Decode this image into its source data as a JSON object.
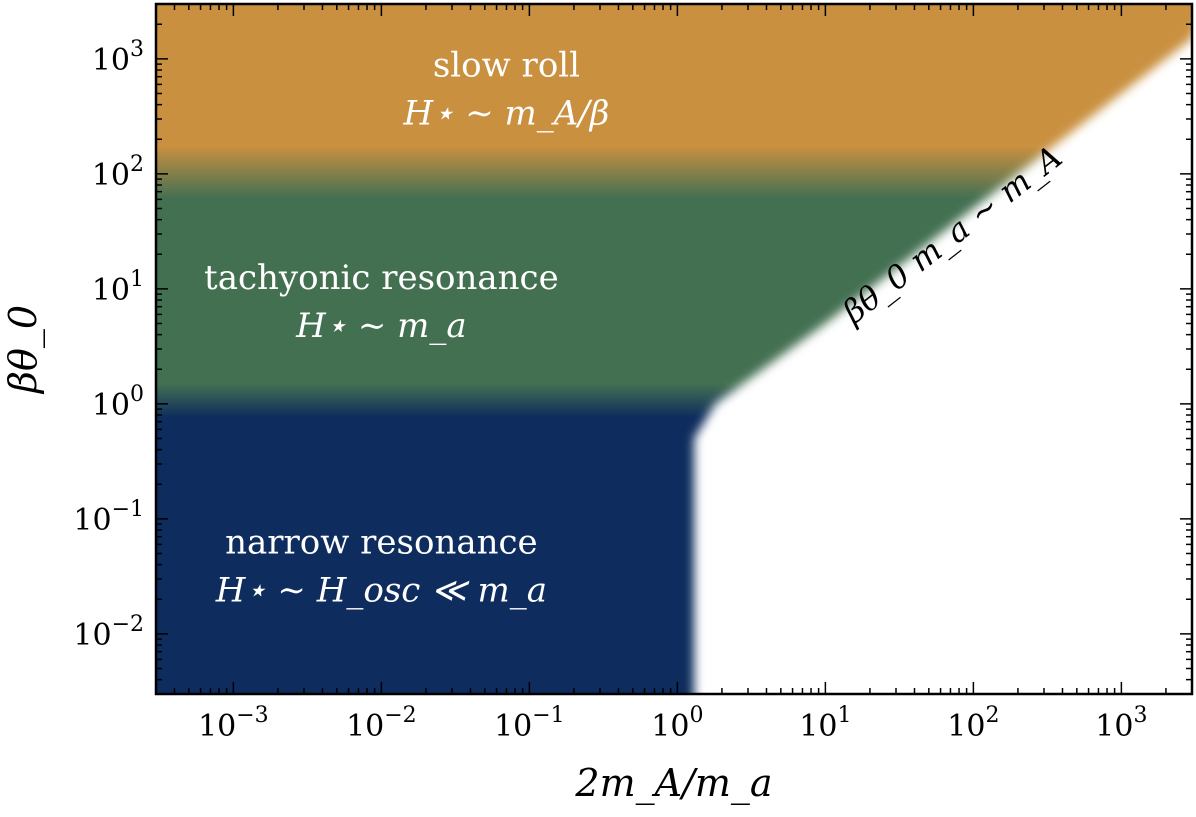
{
  "chart_data": {
    "type": "heatmap",
    "title": "",
    "xlabel": "2m_A/m_a",
    "ylabel": "βθ_0",
    "x_scale": "log",
    "y_scale": "log",
    "xlim": [
      0.0003,
      3000
    ],
    "ylim": [
      0.003,
      3000
    ],
    "x_ticks": [
      {
        "value": 0.001,
        "label": "10^-3"
      },
      {
        "value": 0.01,
        "label": "10^-2"
      },
      {
        "value": 0.1,
        "label": "10^-1"
      },
      {
        "value": 1,
        "label": "10^0"
      },
      {
        "value": 10,
        "label": "10^1"
      },
      {
        "value": 100,
        "label": "10^2"
      },
      {
        "value": 1000,
        "label": "10^3"
      }
    ],
    "y_ticks": [
      {
        "value": 0.01,
        "label": "10^-2"
      },
      {
        "value": 0.1,
        "label": "10^-1"
      },
      {
        "value": 1,
        "label": "10^0"
      },
      {
        "value": 10,
        "label": "10^1"
      },
      {
        "value": 100,
        "label": "10^2"
      },
      {
        "value": 1000,
        "label": "10^3"
      }
    ],
    "grid": false,
    "regions": [
      {
        "name": "slow roll",
        "formula": "H⋆ ∼ m_A/β",
        "color": "#c99040",
        "y_range": [
          100,
          3000
        ]
      },
      {
        "name": "tachyonic resonance",
        "formula": "H⋆ ∼ m_a",
        "color": "#447052",
        "y_range": [
          1,
          100
        ]
      },
      {
        "name": "narrow resonance",
        "formula": "H⋆ ∼ H_osc ≪ m_a",
        "color": "#0e2c5d",
        "y_range": [
          0.003,
          1
        ]
      }
    ],
    "boundary": {
      "label": "βθ_0 m_a ∼ m_A",
      "points": [
        [
          1.3,
          0.003
        ],
        [
          1.3,
          0.5
        ],
        [
          1.8,
          1.0
        ],
        [
          10,
          5
        ],
        [
          100,
          50
        ],
        [
          3000,
          1500
        ]
      ],
      "fill_color": "#ffffff"
    },
    "label_positions": {
      "slow roll": [
        0.07,
        700
      ],
      "tachyonic resonance": [
        0.01,
        10
      ],
      "narrow resonance": [
        0.01,
        0.05
      ],
      "boundary": [
        80,
        25
      ]
    }
  }
}
